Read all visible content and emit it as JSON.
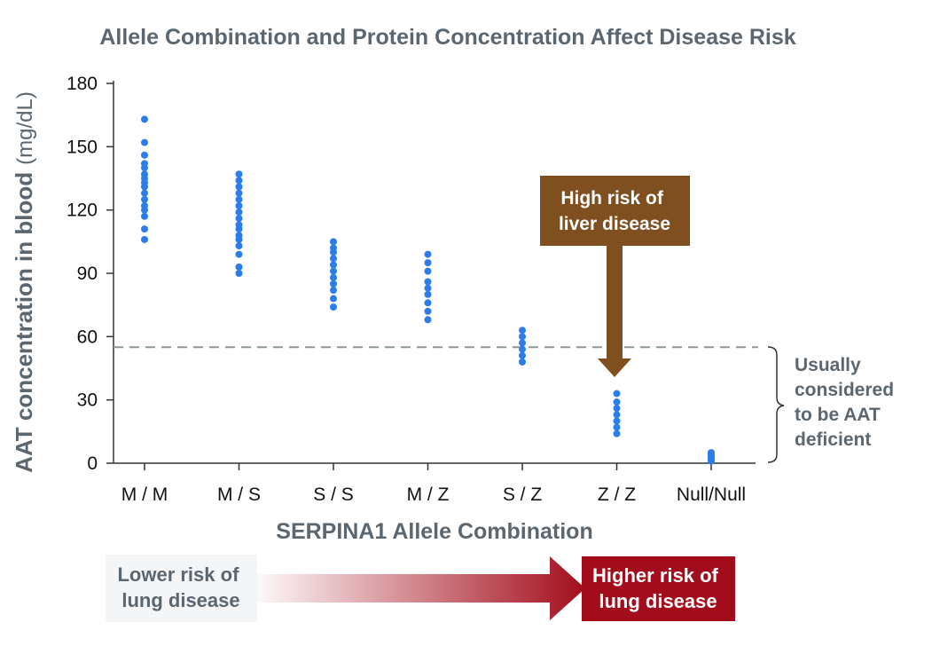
{
  "chart_data": {
    "type": "scatter",
    "title": "Allele Combination and Protein Concentration Affect Disease Risk",
    "ylabel": "AAT concentration in blood",
    "ylabel_unit": "(mg/dL)",
    "xlabel": "SERPINA1 Allele Combination",
    "ylim": [
      0,
      180
    ],
    "yticks": [
      0,
      30,
      60,
      90,
      120,
      150,
      180
    ],
    "ytick_labels": [
      "0",
      "30",
      "60",
      "90",
      "120",
      "150",
      "180"
    ],
    "categories": [
      "M / M",
      "M / S",
      "S / S",
      "M / Z",
      "S / Z",
      "Z / Z",
      "Null/Null"
    ],
    "points": [
      [
        106,
        111,
        117,
        120,
        122,
        125,
        128,
        131,
        133,
        135,
        137,
        140,
        142,
        146,
        152,
        163
      ],
      [
        90,
        93,
        99,
        103,
        106,
        108,
        111,
        113,
        116,
        119,
        122,
        125,
        128,
        131,
        134,
        137
      ],
      [
        74,
        78,
        82,
        85,
        88,
        91,
        94,
        97,
        100,
        102,
        105
      ],
      [
        68,
        72,
        76,
        80,
        83,
        86,
        91,
        95,
        99
      ],
      [
        48,
        51,
        54,
        57,
        60,
        63
      ],
      [
        14,
        17,
        20,
        23,
        26,
        29,
        33
      ],
      [
        1,
        2,
        3,
        4,
        5
      ]
    ],
    "threshold": 55,
    "grid": false,
    "legend": "none",
    "colors": {
      "points": "#2b7de9",
      "threshold_line": "#8c9599",
      "liver_box": "#7f4f1f",
      "high_risk_box": "#a30d1b",
      "low_risk_box": "#f3f5f6",
      "text": "#5b6770"
    },
    "annotations": {
      "liver_risk": [
        "High risk of",
        "liver disease"
      ],
      "deficient": [
        "Usually",
        "considered",
        "to be AAT",
        "deficient"
      ],
      "lower_risk": [
        "Lower risk of",
        "lung disease"
      ],
      "higher_risk": [
        "Higher risk of",
        "lung disease"
      ]
    }
  }
}
